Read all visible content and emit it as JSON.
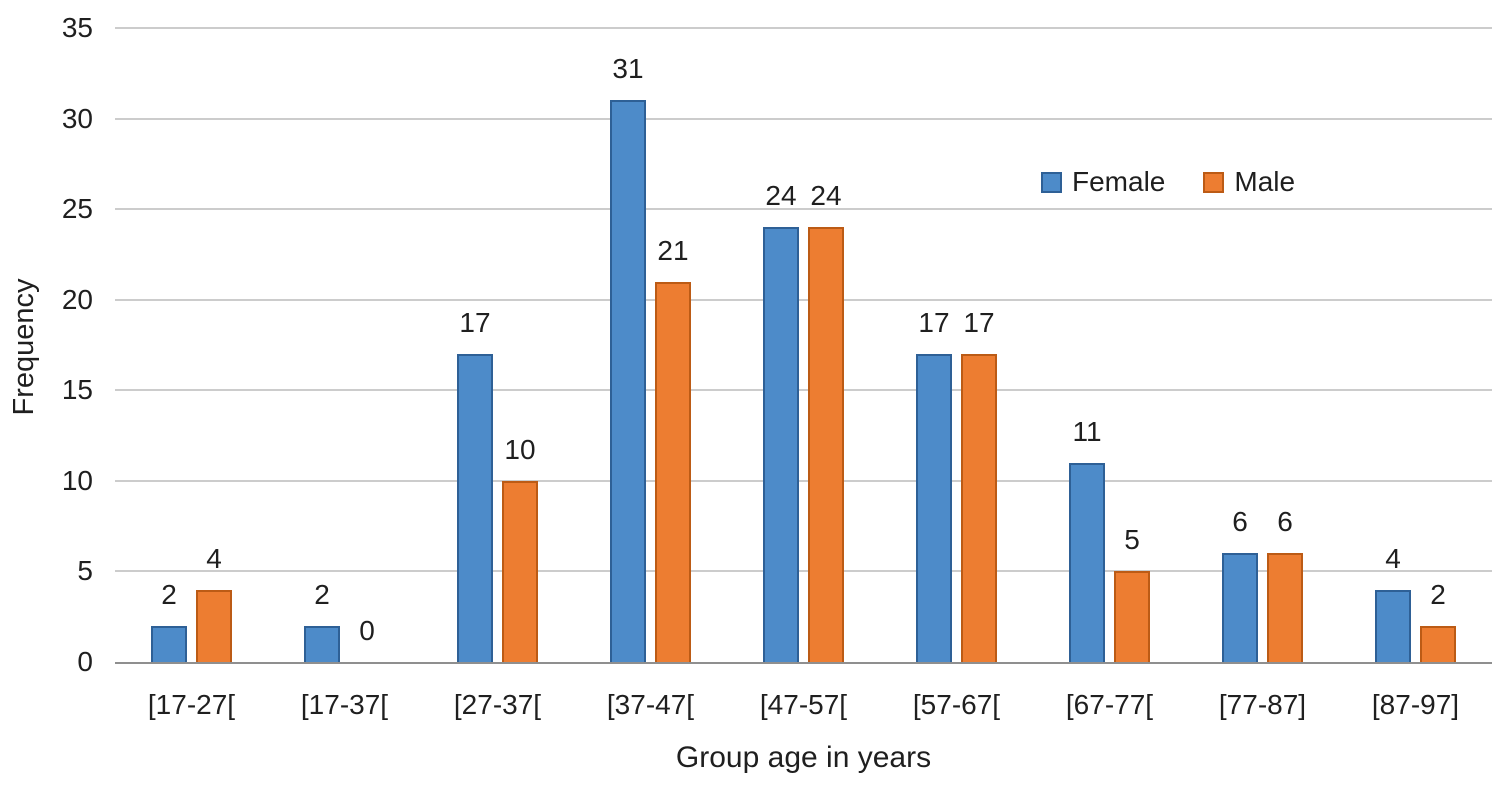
{
  "chart_data": {
    "type": "bar",
    "title": "",
    "xlabel": "Group age in years",
    "ylabel": "Frequency",
    "categories": [
      "[17-27[",
      "[17-37[",
      "[27-37[",
      "[37-47[",
      "[47-57[",
      "[57-67[",
      "[67-77[",
      "[77-87]",
      "[87-97]"
    ],
    "series": [
      {
        "name": "Female",
        "color": "#4d8bc9",
        "border_color": "#2e6096",
        "values": [
          2,
          2,
          17,
          31,
          24,
          17,
          11,
          6,
          4
        ]
      },
      {
        "name": "Male",
        "color": "#ed7d31",
        "border_color": "#bc5b15",
        "values": [
          4,
          0,
          10,
          21,
          24,
          17,
          5,
          6,
          2
        ]
      }
    ],
    "ylim": [
      0,
      35
    ],
    "yticks": [
      0,
      5,
      10,
      15,
      20,
      25,
      30,
      35
    ],
    "grid": true,
    "data_labels": true,
    "legend_position": "inside-top-right"
  },
  "colors": {
    "background": "#ffffff",
    "gridline": "#cccccc",
    "axis_line": "#8f8f8f",
    "text": "#1f1f1f"
  }
}
